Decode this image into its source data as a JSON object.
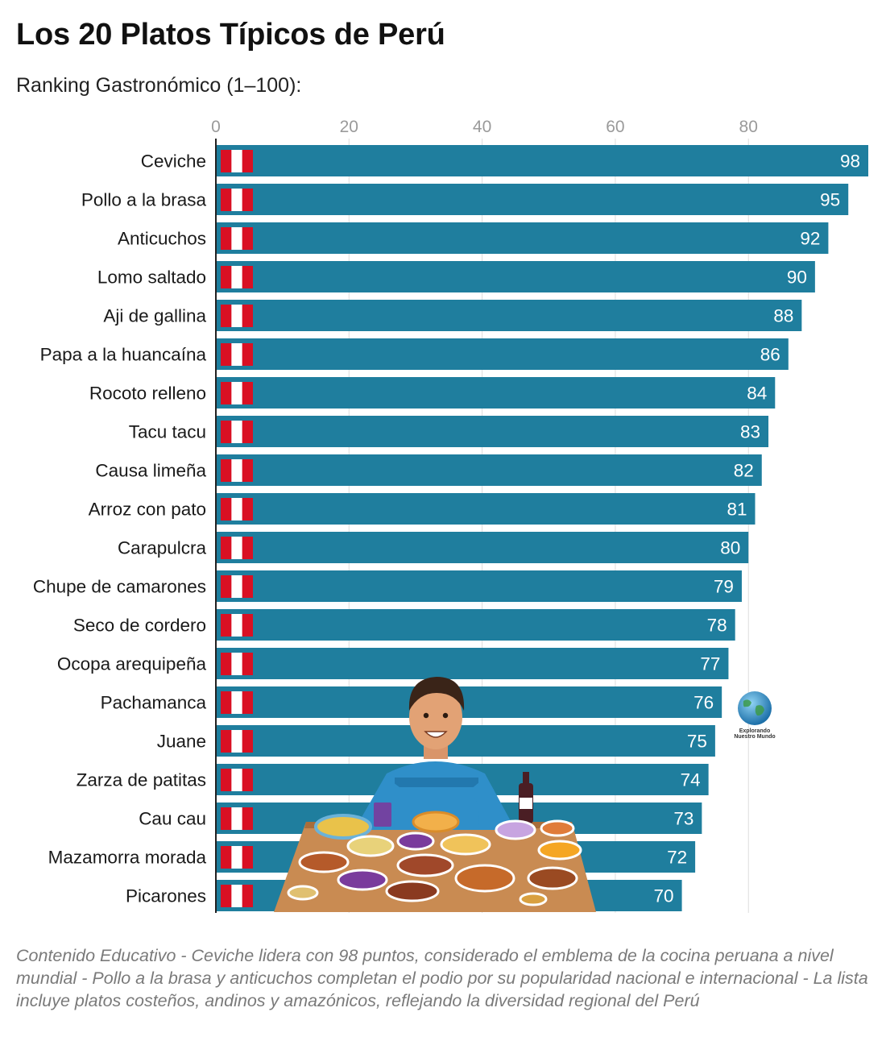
{
  "title": "Los 20 Platos Típicos de Perú",
  "subtitle": "Ranking Gastronómico (1–100):",
  "caption": "Contenido Educativo - Ceviche lidera con 98 puntos, considerado el emblema de la cocina peruana a nivel mundial - Pollo a la brasa y anticuchos completan el podio por su popularidad nacional e internacional - La lista incluye platos costeños, andinos y amazónicos, reflejando la diversidad regional del Perú",
  "logo_text": "Explorando Nuestro Mundo",
  "colors": {
    "bar": "#1f7e9e",
    "flag_red": "#d91023",
    "grid": "#dddddd",
    "tick": "#9a9a9a"
  },
  "chart_data": {
    "type": "bar",
    "orientation": "horizontal",
    "title": "Los 20 Platos Típicos de Perú",
    "subtitle": "Ranking Gastronómico (1–100):",
    "xlabel": "",
    "ylabel": "",
    "xlim": [
      0,
      98
    ],
    "xticks": [
      0,
      20,
      40,
      60,
      80
    ],
    "grid": true,
    "categories": [
      "Ceviche",
      "Pollo a la brasa",
      "Anticuchos",
      "Lomo saltado",
      "Aji de gallina",
      "Papa a la huancaína",
      "Rocoto relleno",
      "Tacu tacu",
      "Causa limeña",
      "Arroz con pato",
      "Carapulcra",
      "Chupe de camarones",
      "Seco de cordero",
      "Ocopa arequipeña",
      "Pachamanca",
      "Juane",
      "Zarza de patitas",
      "Cau cau",
      "Mazamorra morada",
      "Picarones"
    ],
    "values": [
      98,
      95,
      92,
      90,
      88,
      86,
      84,
      83,
      82,
      81,
      80,
      79,
      78,
      77,
      76,
      75,
      74,
      73,
      72,
      70
    ]
  }
}
